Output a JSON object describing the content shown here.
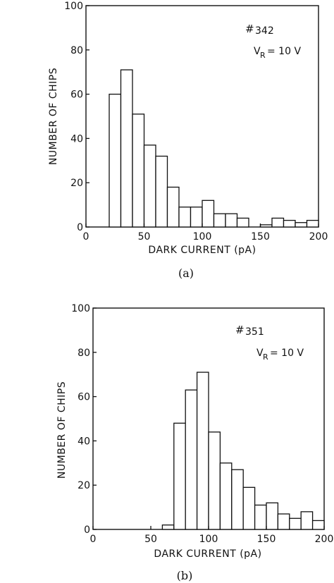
{
  "chart_data": [
    {
      "type": "bar",
      "panel_label": "(a)",
      "sample_id": "#342",
      "condition": "VR = 10 V",
      "xlabel": "DARK CURRENT (pA)",
      "ylabel": "NUMBER OF CHIPS",
      "xlim": [
        0,
        200
      ],
      "ylim": [
        0,
        100
      ],
      "xticks": [
        "0",
        "50",
        "100",
        "150",
        "200"
      ],
      "yticks": [
        "0",
        "20",
        "40",
        "60",
        "80",
        "100"
      ],
      "bin_width": 10,
      "bin_starts": [
        20,
        30,
        40,
        50,
        60,
        70,
        80,
        90,
        100,
        110,
        120,
        130,
        140,
        150,
        160,
        170,
        180,
        190
      ],
      "values": [
        60,
        71,
        51,
        37,
        32,
        18,
        9,
        9,
        12,
        6,
        6,
        4,
        0,
        1,
        4,
        3,
        2,
        3
      ]
    },
    {
      "type": "bar",
      "panel_label": "(b)",
      "sample_id": "#351",
      "condition": "VR = 10 V",
      "xlabel": "DARK CURRENT (pA)",
      "ylabel": "NUMBER OF CHIPS",
      "xlim": [
        0,
        200
      ],
      "ylim": [
        0,
        100
      ],
      "xticks": [
        "0",
        "50",
        "100",
        "150",
        "200"
      ],
      "yticks": [
        "0",
        "20",
        "40",
        "60",
        "80",
        "100"
      ],
      "bin_width": 10,
      "bin_starts": [
        60,
        70,
        80,
        90,
        100,
        110,
        120,
        130,
        140,
        150,
        160,
        170,
        180,
        190
      ],
      "values": [
        2,
        48,
        63,
        71,
        44,
        30,
        27,
        19,
        11,
        12,
        7,
        5,
        8,
        4
      ]
    }
  ]
}
